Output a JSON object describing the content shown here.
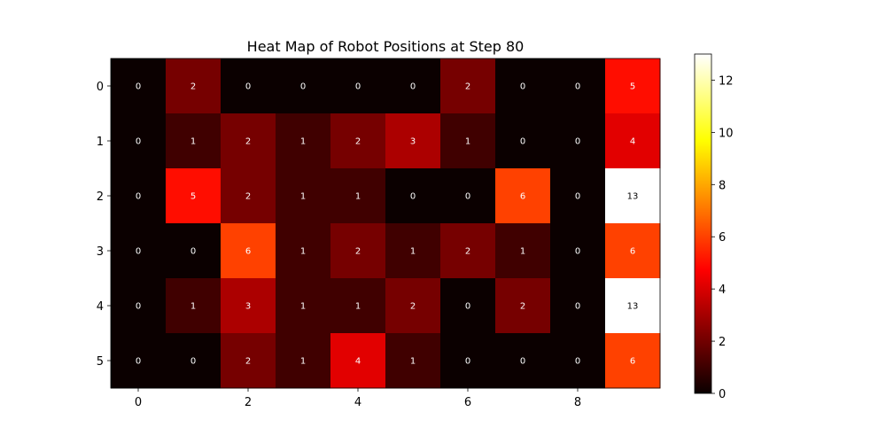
{
  "chart_data": {
    "type": "heatmap",
    "title": "Heat Map of Robot Positions at Step 80",
    "xlabel": "",
    "ylabel": "",
    "colormap": "hot",
    "rows": 6,
    "cols": 10,
    "x_ticks": [
      0,
      2,
      4,
      6,
      8
    ],
    "y_ticks": [
      0,
      1,
      2,
      3,
      4,
      5
    ],
    "values": [
      [
        0,
        2,
        0,
        0,
        0,
        0,
        2,
        0,
        0,
        5
      ],
      [
        0,
        1,
        2,
        1,
        2,
        3,
        1,
        0,
        0,
        4
      ],
      [
        0,
        5,
        2,
        1,
        1,
        0,
        0,
        6,
        0,
        13
      ],
      [
        0,
        0,
        6,
        1,
        2,
        1,
        2,
        1,
        0,
        6
      ],
      [
        0,
        1,
        3,
        1,
        1,
        2,
        0,
        2,
        0,
        13
      ],
      [
        0,
        0,
        2,
        1,
        4,
        1,
        0,
        0,
        0,
        6
      ]
    ],
    "vmin": 0,
    "vmax": 13,
    "colorbar_ticks": [
      0,
      2,
      4,
      6,
      8,
      10,
      12
    ],
    "show_cell_labels": true
  }
}
